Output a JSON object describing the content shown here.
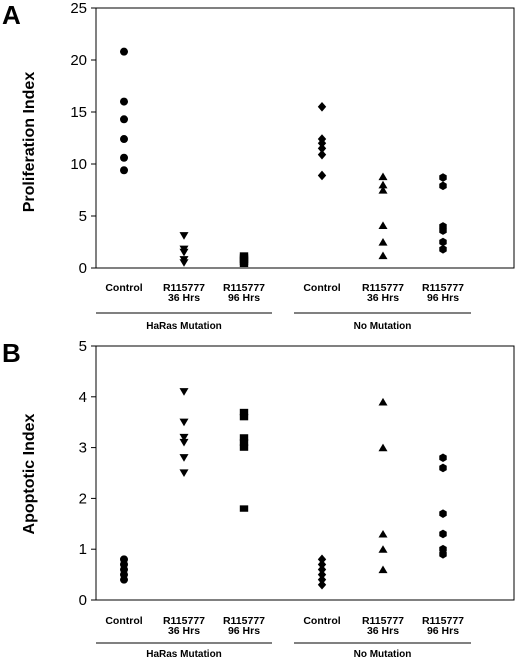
{
  "chart_data": [
    {
      "type": "scatter",
      "panel_letter": "A",
      "ylabel": "Proliferation Index",
      "xlabel": "",
      "ylim": [
        0,
        25
      ],
      "yticks": [
        0,
        5,
        10,
        15,
        20,
        25
      ],
      "grid": false,
      "categories": [
        {
          "line1": "Control",
          "line2": ""
        },
        {
          "line1": "R115777",
          "line2": "36 Hrs"
        },
        {
          "line1": "R115777",
          "line2": "96 Hrs"
        },
        {
          "line1": "Control",
          "line2": ""
        },
        {
          "line1": "R115777",
          "line2": "36 Hrs"
        },
        {
          "line1": "R115777",
          "line2": "96 Hrs"
        }
      ],
      "groups": [
        {
          "label": "HaRas Mutation",
          "from": 0,
          "to": 2
        },
        {
          "label": "No Mutation",
          "from": 3,
          "to": 5
        }
      ],
      "series": [
        {
          "category": 0,
          "marker": "circle",
          "values": [
            20.8,
            16.0,
            14.3,
            12.4,
            10.6,
            9.4
          ]
        },
        {
          "category": 1,
          "marker": "triangle-down",
          "values": [
            3.1,
            1.8,
            1.5,
            0.8,
            0.5
          ]
        },
        {
          "category": 2,
          "marker": "square",
          "values": [
            1.2,
            1.0,
            0.8,
            0.6,
            0.4
          ]
        },
        {
          "category": 3,
          "marker": "diamond",
          "values": [
            15.5,
            12.4,
            12.0,
            11.5,
            10.9,
            8.9
          ]
        },
        {
          "category": 4,
          "marker": "triangle-up",
          "values": [
            8.8,
            8.0,
            7.5,
            4.1,
            2.5,
            1.2
          ]
        },
        {
          "category": 5,
          "marker": "hexagon",
          "values": [
            8.7,
            7.9,
            4.0,
            3.6,
            2.5,
            1.8
          ]
        }
      ]
    },
    {
      "type": "scatter",
      "panel_letter": "B",
      "ylabel": "Apoptotic Index",
      "xlabel": "",
      "ylim": [
        0,
        5
      ],
      "yticks": [
        0,
        1,
        2,
        3,
        4,
        5
      ],
      "grid": false,
      "categories": [
        {
          "line1": "Control",
          "line2": ""
        },
        {
          "line1": "R115777",
          "line2": "36 Hrs"
        },
        {
          "line1": "R115777",
          "line2": "96 Hrs"
        },
        {
          "line1": "Control",
          "line2": ""
        },
        {
          "line1": "R115777",
          "line2": "36 Hrs"
        },
        {
          "line1": "R115777",
          "line2": "96 Hrs"
        }
      ],
      "groups": [
        {
          "label": "HaRas Mutation",
          "from": 0,
          "to": 2
        },
        {
          "label": "No Mutation",
          "from": 3,
          "to": 5
        }
      ],
      "series": [
        {
          "category": 0,
          "marker": "circle",
          "values": [
            0.8,
            0.7,
            0.6,
            0.5,
            0.4
          ]
        },
        {
          "category": 1,
          "marker": "triangle-down",
          "values": [
            4.1,
            3.5,
            3.2,
            3.1,
            2.8,
            2.5
          ]
        },
        {
          "category": 2,
          "marker": "square",
          "values": [
            3.7,
            3.6,
            3.2,
            3.1,
            3.0,
            1.8
          ]
        },
        {
          "category": 3,
          "marker": "diamond",
          "values": [
            0.8,
            0.7,
            0.6,
            0.5,
            0.4,
            0.3
          ]
        },
        {
          "category": 4,
          "marker": "triangle-up",
          "values": [
            3.9,
            3.0,
            1.3,
            1.0,
            0.6
          ]
        },
        {
          "category": 5,
          "marker": "hexagon",
          "values": [
            2.8,
            2.6,
            1.7,
            1.3,
            1.0,
            0.9
          ]
        }
      ]
    }
  ]
}
